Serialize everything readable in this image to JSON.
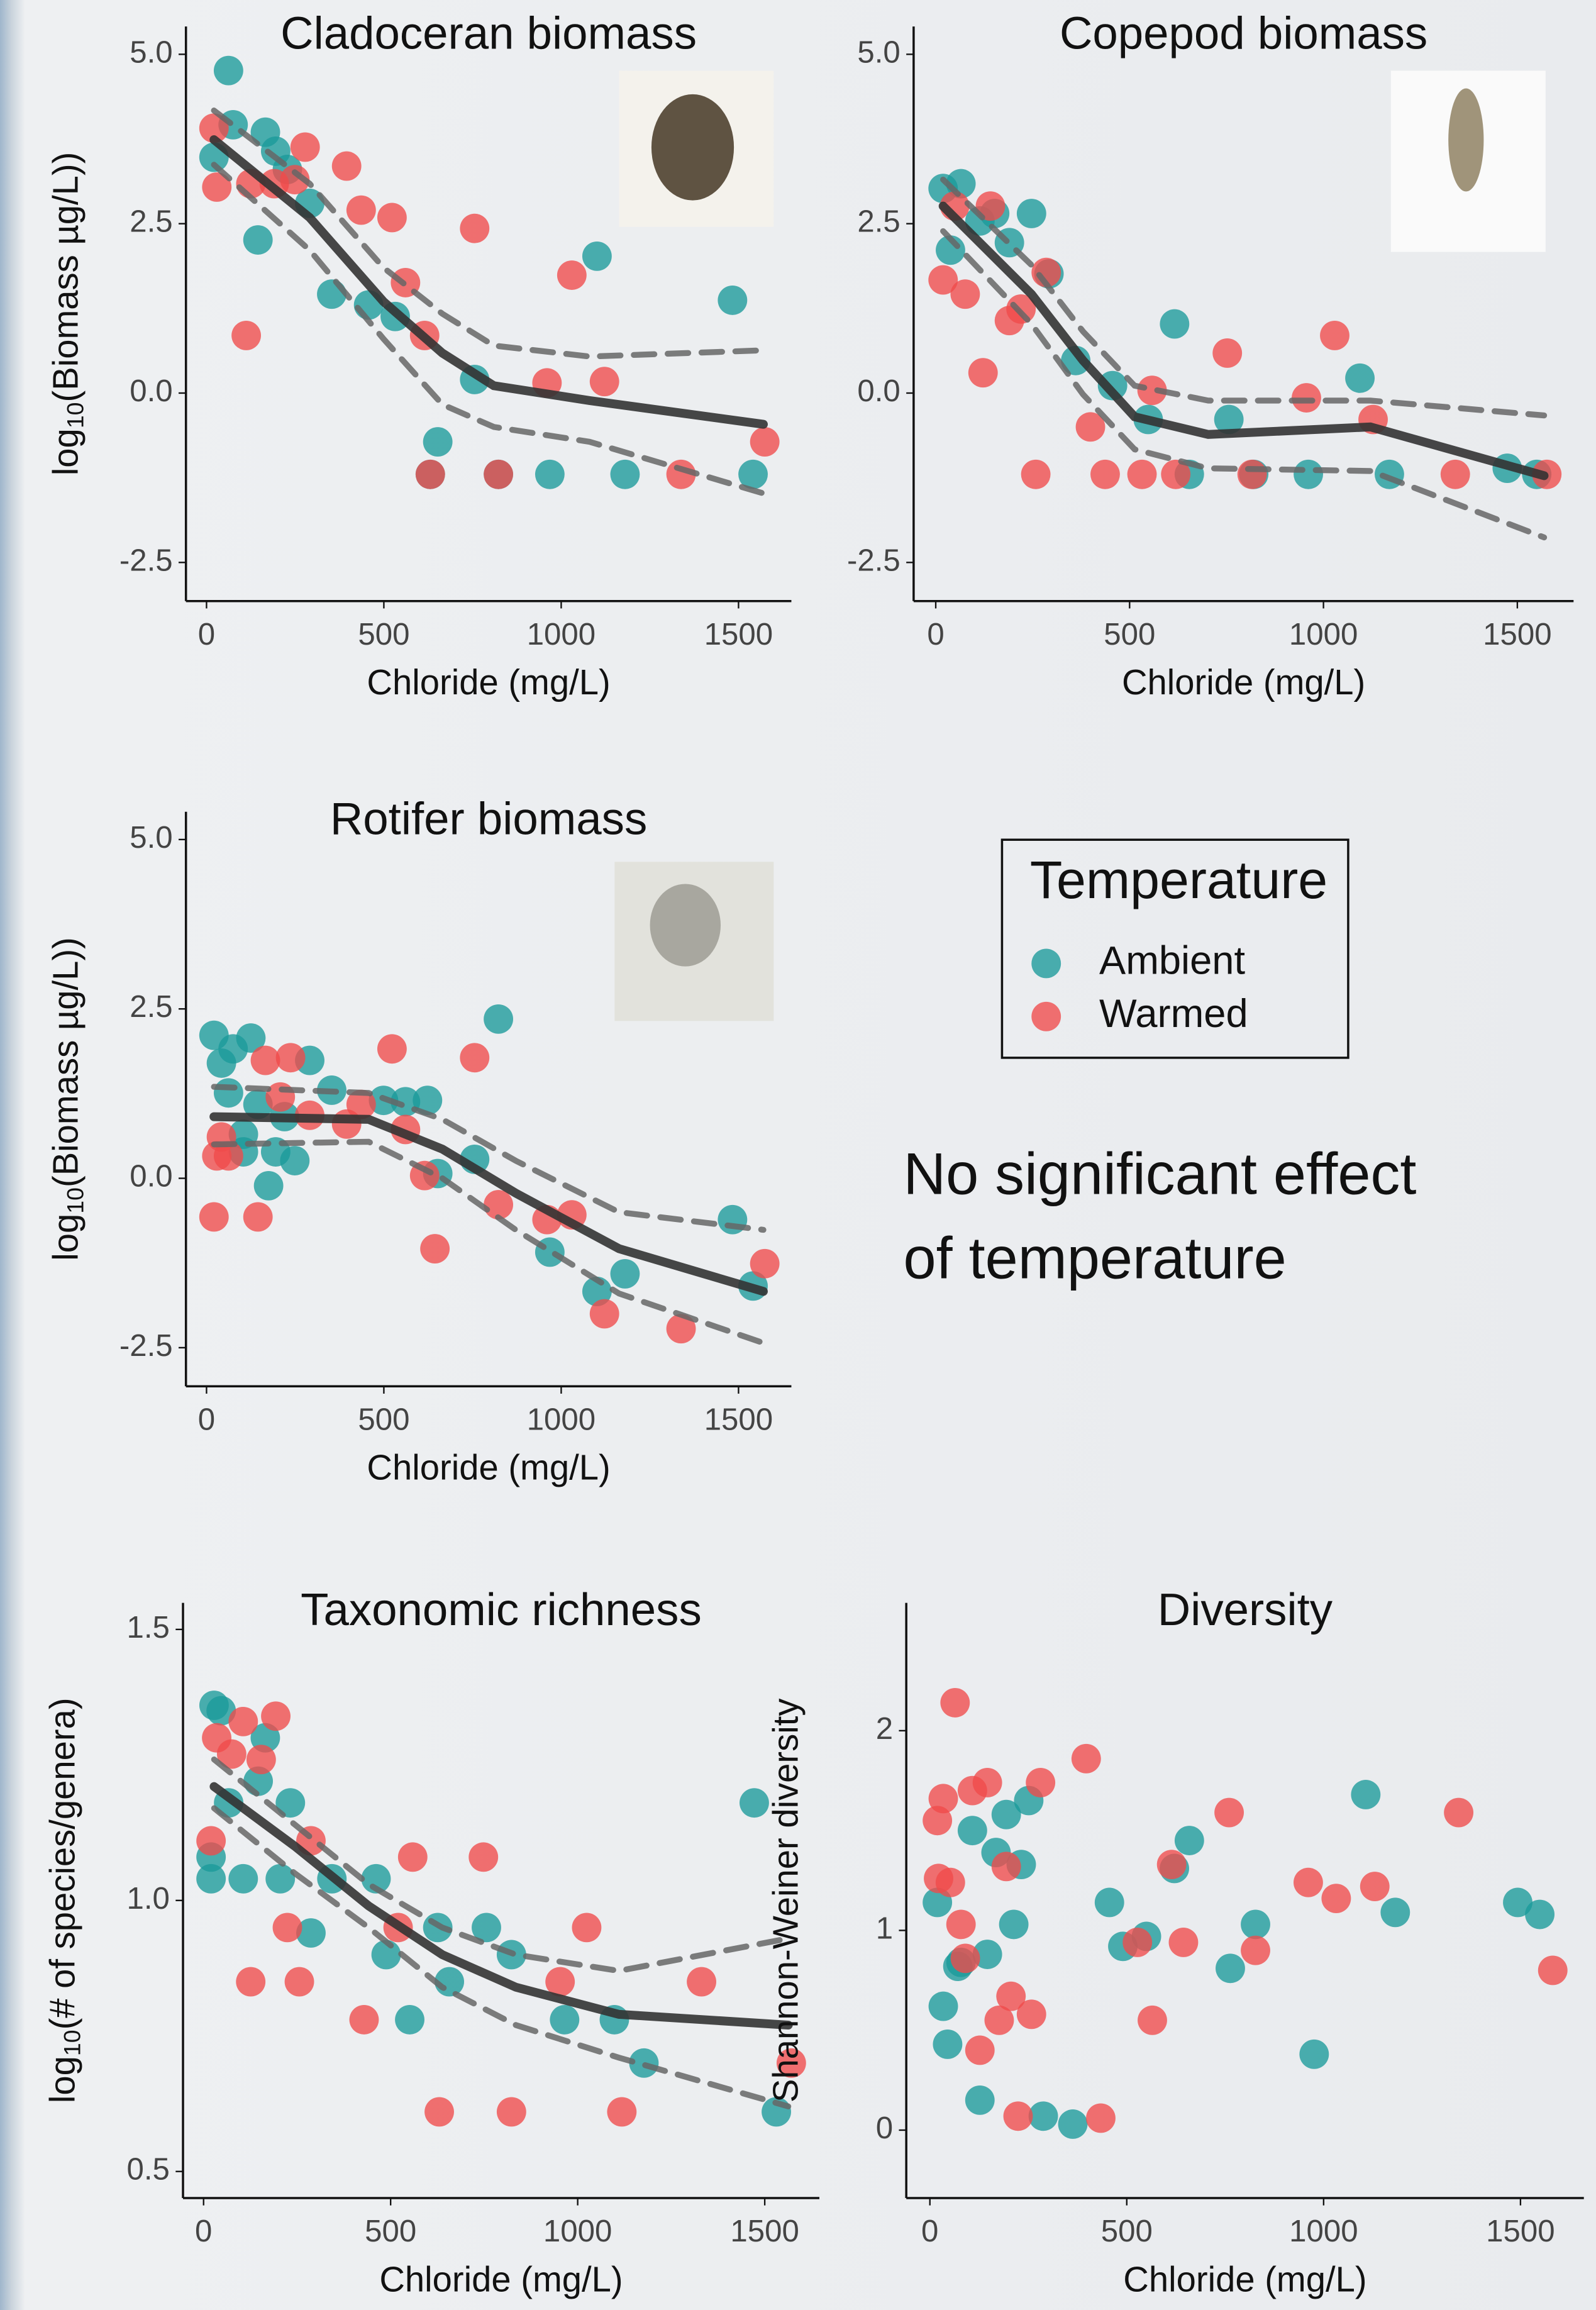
{
  "chart_data": [
    {
      "type": "scatter",
      "title": "Cladoceran biomass",
      "xlabel": "Chloride (mg/L)",
      "ylabel": [
        "log",
        "10",
        "(Biomass µg/L))"
      ],
      "xlim": [
        -58,
        1649
      ],
      "ylim": [
        -3.07,
        5.41
      ],
      "xticks": [
        0,
        500,
        1000,
        1500
      ],
      "yticks": [
        {
          "value": 5,
          "label": "5.0"
        },
        {
          "value": 2.5,
          "label": "2.5"
        },
        {
          "value": 0,
          "label": "0.0"
        },
        {
          "value": -2.5,
          "label": "-2.5"
        }
      ],
      "series": [
        {
          "color": "#1a9a9a",
          "x": [
            62,
            75,
            145,
            166,
            195,
            228,
            291,
            353,
            457,
            532,
            652,
            631,
            756,
            823,
            968,
            1101,
            1180,
            1483,
            1541,
            21
          ],
          "y": [
            4.76,
            3.96,
            2.26,
            3.85,
            3.57,
            3.3,
            2.8,
            1.46,
            1.3,
            1.13,
            -0.72,
            -1.2,
            0.2,
            -1.2,
            -1.2,
            2.02,
            -1.2,
            1.37,
            -1.2,
            3.48
          ]
        },
        {
          "color": "#f04a4a",
          "x": [
            21,
            29,
            112,
            125,
            191,
            249,
            278,
            395,
            436,
            523,
            561,
            615,
            756,
            823,
            960,
            1030,
            1122,
            1338,
            1574,
            631
          ],
          "y": [
            3.91,
            3.04,
            0.85,
            3.09,
            3.09,
            3.15,
            3.63,
            3.35,
            2.7,
            2.59,
            1.63,
            0.85,
            2.43,
            -1.2,
            0.15,
            1.74,
            0.17,
            -1.2,
            -0.72,
            -1.2
          ]
        }
      ],
      "fit": {
        "x": [
          21,
          291,
          499,
          665,
          810,
          1080,
          1570
        ],
        "y": [
          3.74,
          2.59,
          1.35,
          0.59,
          0.11,
          -0.11,
          -0.46
        ],
        "lower": [
          3.37,
          2.11,
          0.8,
          -0.17,
          -0.5,
          -0.72,
          -1.48
        ],
        "upper": [
          4.17,
          3.09,
          1.85,
          1.17,
          0.7,
          0.54,
          0.63
        ]
      }
    },
    {
      "type": "scatter",
      "title": "Copepod biomass",
      "xlabel": "Chloride (mg/L)",
      "xlim": [
        -57,
        1645
      ],
      "ylim": [
        -3.07,
        5.41
      ],
      "xticks": [
        0,
        500,
        1000,
        1500
      ],
      "yticks": [
        {
          "value": 5,
          "label": "5.0"
        },
        {
          "value": 2.5,
          "label": "2.5"
        },
        {
          "value": 0,
          "label": "0.0"
        },
        {
          "value": -2.5,
          "label": "-2.5"
        }
      ],
      "series": [
        {
          "color": "#1a9a9a",
          "x": [
            19,
            38,
            65,
            114,
            152,
            190,
            247,
            292,
            361,
            456,
            548,
            616,
            654,
            756,
            820,
            961,
            1094,
            1170,
            1474,
            1550
          ],
          "y": [
            3.02,
            2.11,
            3.09,
            2.54,
            2.65,
            2.22,
            2.65,
            1.76,
            0.48,
            0.11,
            -0.39,
            1.02,
            -1.2,
            -0.39,
            -1.2,
            -1.2,
            0.22,
            -1.2,
            -1.11,
            -1.2
          ]
        },
        {
          "color": "#f04a4a",
          "x": [
            19,
            49,
            76,
            122,
            141,
            190,
            220,
            285,
            399,
            437,
            532,
            558,
            619,
            752,
            816,
            956,
            1029,
            1128,
            1340,
            1576,
            258
          ],
          "y": [
            1.67,
            2.76,
            1.46,
            0.3,
            2.76,
            1.07,
            1.24,
            1.78,
            -0.5,
            -1.2,
            -1.2,
            0.04,
            -1.2,
            0.59,
            -1.2,
            -0.07,
            0.85,
            -0.39,
            -1.2,
            -1.2,
            -1.2
          ]
        }
      ],
      "fit": {
        "x": [
          19,
          247,
          380,
          513,
          703,
          1121,
          1569
        ],
        "y": [
          2.76,
          1.46,
          0.48,
          -0.35,
          -0.61,
          -0.5,
          -1.22
        ],
        "lower": [
          2.39,
          1.02,
          -0.02,
          -0.83,
          -1.11,
          -1.15,
          -2.13
        ],
        "upper": [
          3.15,
          1.89,
          0.91,
          0.11,
          -0.11,
          -0.11,
          -0.33
        ]
      }
    },
    {
      "type": "scatter",
      "title": "Rotifer biomass",
      "xlabel": "Chloride (mg/L)",
      "ylabel": [
        "log",
        "10",
        "(Biomass µg/L))"
      ],
      "xlim": [
        -58,
        1649
      ],
      "ylim": [
        -3.07,
        5.41
      ],
      "xticks": [
        0,
        500,
        1000,
        1500
      ],
      "yticks": [
        {
          "value": 5,
          "label": "5.0"
        },
        {
          "value": 2.5,
          "label": "2.5"
        },
        {
          "value": 0,
          "label": "0.0"
        },
        {
          "value": -2.5,
          "label": "-2.5"
        }
      ],
      "series": [
        {
          "color": "#1a9a9a",
          "x": [
            21,
            42,
            62,
            75,
            104,
            125,
            145,
            175,
            195,
            220,
            249,
            291,
            353,
            499,
            561,
            623,
            652,
            756,
            823,
            968,
            1101,
            1180,
            1483,
            1541,
            104
          ],
          "y": [
            2.11,
            1.7,
            1.26,
            1.91,
            0.65,
            2.07,
            1.09,
            -0.11,
            0.39,
            0.91,
            0.26,
            1.74,
            1.3,
            1.15,
            1.13,
            1.15,
            0.07,
            0.28,
            2.35,
            -1.09,
            -1.67,
            -1.41,
            -0.61,
            -1.59,
            0.39
          ]
        },
        {
          "color": "#f04a4a",
          "x": [
            21,
            29,
            42,
            145,
            166,
            208,
            237,
            291,
            395,
            436,
            523,
            561,
            615,
            644,
            756,
            823,
            960,
            1030,
            1122,
            1338,
            1574,
            62
          ],
          "y": [
            -0.57,
            0.33,
            0.61,
            -0.57,
            1.74,
            1.2,
            1.78,
            0.93,
            0.8,
            1.09,
            1.91,
            0.72,
            0.04,
            -1.04,
            1.78,
            -0.39,
            -0.61,
            -0.54,
            -2.0,
            -2.22,
            -1.26,
            0.33
          ]
        }
      ],
      "fit": {
        "x": [
          21,
          457,
          665,
          872,
          1163,
          1570
        ],
        "y": [
          0.91,
          0.87,
          0.43,
          -0.22,
          -1.04,
          -1.67
        ],
        "lower": [
          0.5,
          0.54,
          0,
          -0.76,
          -1.7,
          -2.43
        ],
        "upper": [
          1.35,
          1.26,
          0.87,
          0.26,
          -0.5,
          -0.76
        ]
      }
    },
    {
      "type": "scatter",
      "title": "Taxonomic richness",
      "xlabel": "Chloride (mg/L)",
      "ylabel": [
        "log",
        "10",
        "(# of species/genera)"
      ],
      "xlim": [
        -55,
        1646
      ],
      "ylim": [
        0.451,
        1.549
      ],
      "xticks": [
        0,
        500,
        1000,
        1500
      ],
      "yticks": [
        {
          "value": 1.5,
          "label": "1.5"
        },
        {
          "value": 1,
          "label": "1.0"
        },
        {
          "value": 0.5,
          "label": "0.5"
        }
      ],
      "series": [
        {
          "color": "#1a9a9a",
          "x": [
            28,
            47,
            67,
            20,
            106,
            146,
            165,
            205,
            232,
            287,
            343,
            461,
            488,
            551,
            626,
            657,
            756,
            823,
            965,
            1098,
            1177,
            1472,
            1531,
            20
          ],
          "y": [
            1.36,
            1.35,
            1.18,
            1.04,
            1.04,
            1.22,
            1.3,
            1.04,
            1.18,
            0.94,
            1.04,
            1.04,
            0.9,
            0.78,
            0.95,
            0.85,
            0.95,
            0.9,
            0.78,
            0.78,
            0.7,
            1.18,
            0.61,
            1.08
          ]
        },
        {
          "color": "#f04a4a",
          "x": [
            20,
            35,
            75,
            106,
            126,
            154,
            193,
            224,
            256,
            287,
            429,
            520,
            559,
            630,
            748,
            823,
            953,
            1024,
            1118,
            1331,
            1571
          ],
          "y": [
            1.11,
            1.3,
            1.27,
            1.33,
            0.85,
            1.26,
            1.34,
            0.95,
            0.85,
            1.11,
            0.78,
            0.95,
            1.08,
            0.61,
            1.08,
            0.61,
            0.85,
            0.95,
            0.61,
            0.85,
            0.7
          ]
        }
      ],
      "fit": {
        "x": [
          28,
          244,
          441,
          638,
          835,
          1110,
          1563
        ],
        "y": [
          1.21,
          1.1,
          0.99,
          0.9,
          0.84,
          0.79,
          0.77
        ],
        "lower": [
          1.17,
          1.05,
          0.95,
          0.84,
          0.77,
          0.71,
          0.62
        ],
        "upper": [
          1.26,
          1.14,
          1.03,
          0.95,
          0.9,
          0.87,
          0.93
        ]
      }
    },
    {
      "type": "scatter",
      "title": "Diversity",
      "xlabel": "Chloride (mg/L)",
      "ylabel": "Shannon-Weiner diversity",
      "xlim": [
        -60,
        1661
      ],
      "ylim": [
        -0.34,
        2.64
      ],
      "xticks": [
        0,
        500,
        1000,
        1500
      ],
      "yticks": [
        0,
        1,
        2
      ],
      "series": [
        {
          "color": "#1a9a9a",
          "x": [
            19,
            34,
            45,
            71,
            79,
            108,
            127,
            146,
            168,
            194,
            213,
            232,
            251,
            288,
            363,
            456,
            490,
            550,
            621,
            659,
            763,
            827,
            976,
            1107,
            1182,
            1493,
            1549
          ],
          "y": [
            1.14,
            0.62,
            0.43,
            0.82,
            0.84,
            1.5,
            0.15,
            0.88,
            1.39,
            1.58,
            1.03,
            1.33,
            1.65,
            0.07,
            0.03,
            1.14,
            0.92,
            0.97,
            1.31,
            1.45,
            0.81,
            1.03,
            0.38,
            1.68,
            1.09,
            1.14,
            1.08
          ]
        },
        {
          "color": "#f04a4a",
          "x": [
            19,
            22,
            34,
            52,
            64,
            79,
            90,
            108,
            127,
            146,
            176,
            194,
            206,
            224,
            258,
            281,
            397,
            434,
            527,
            565,
            614,
            644,
            760,
            827,
            961,
            1032,
            1130,
            1343,
            1582
          ],
          "y": [
            1.55,
            1.26,
            1.66,
            1.24,
            2.14,
            1.03,
            0.86,
            1.7,
            0.4,
            1.74,
            0.55,
            1.32,
            0.67,
            0.07,
            0.58,
            1.74,
            1.86,
            0.06,
            0.94,
            0.55,
            1.33,
            0.94,
            1.59,
            0.9,
            1.24,
            1.16,
            1.22,
            1.59,
            0.8
          ]
        }
      ]
    }
  ],
  "legend": {
    "title": "Temperature",
    "items": [
      {
        "name": "Ambient",
        "color": "#1a9a9a"
      },
      {
        "name": "Warmed",
        "color": "#f04a4a"
      }
    ]
  },
  "annotation": [
    "No significant effect",
    "of temperature"
  ]
}
